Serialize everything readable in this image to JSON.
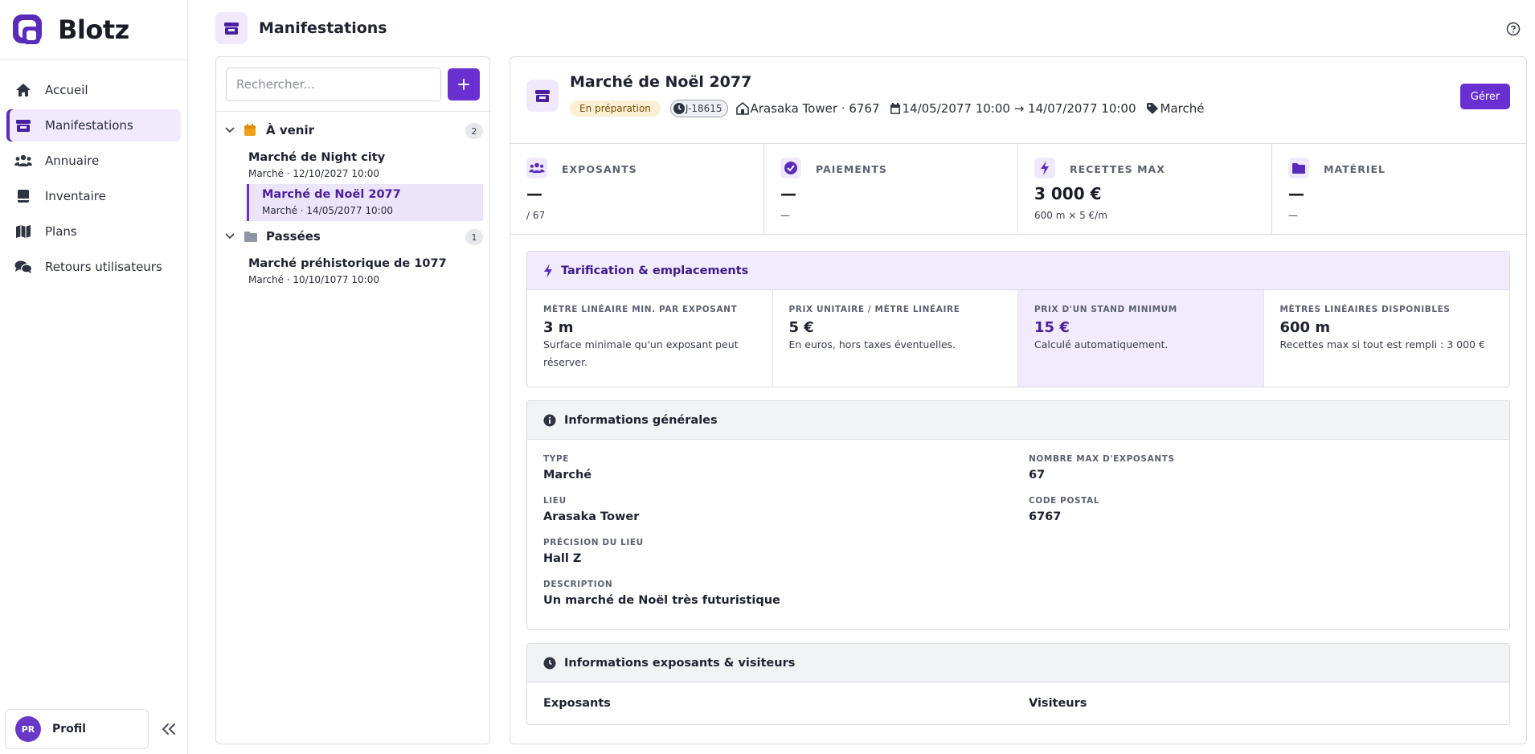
{
  "app": {
    "name": "Blotz"
  },
  "sidebar": {
    "items": [
      {
        "label": "Accueil",
        "icon": "home-icon"
      },
      {
        "label": "Manifestations",
        "icon": "store-icon",
        "active": true
      },
      {
        "label": "Annuaire",
        "icon": "users-icon"
      },
      {
        "label": "Inventaire",
        "icon": "box-icon"
      },
      {
        "label": "Plans",
        "icon": "map-icon"
      },
      {
        "label": "Retours utilisateurs",
        "icon": "comments-icon"
      }
    ],
    "profile": {
      "initials": "PR",
      "label": "Profil"
    }
  },
  "header": {
    "title": "Manifestations"
  },
  "list": {
    "search_placeholder": "Rechercher...",
    "groups": [
      {
        "title": "À venir",
        "count": "2",
        "events": [
          {
            "title": "Marché de Night city",
            "sub": "Marché · 12/10/2027 10:00"
          },
          {
            "title": "Marché de Noël 2077",
            "sub": "Marché · 14/05/2077 10:00",
            "selected": true
          }
        ]
      },
      {
        "title": "Passées",
        "count": "1",
        "events": [
          {
            "title": "Marché préhistorique de 1077",
            "sub": "Marché · 10/10/1077 10:00"
          }
        ]
      }
    ]
  },
  "detail": {
    "title": "Marché de Noël 2077",
    "status": "En préparation",
    "countdown": "J-18615",
    "location": "Arasaka Tower · 6767",
    "dates": "14/05/2077 10:00 → 14/07/2077 10:00",
    "type_tag": "Marché",
    "manage_label": "Gérer",
    "stats": [
      {
        "label": "EXPOSANTS",
        "value": "—",
        "sub": "/ 67",
        "icon": "users-icon"
      },
      {
        "label": "PAIEMENTS",
        "value": "—",
        "sub": "—",
        "icon": "check-badge-icon"
      },
      {
        "label": "RECETTES MAX",
        "value": "3 000 €",
        "sub": "600 m × 5 €/m",
        "icon": "bolt-icon"
      },
      {
        "label": "MATÉRIEL",
        "value": "—",
        "sub": "—",
        "icon": "folder-icon"
      }
    ],
    "pricing": {
      "title": "Tarification & emplacements",
      "cells": [
        {
          "label": "Mètre linéaire min. par exposant",
          "value": "3 m",
          "desc": "Surface minimale qu'un exposant peut réserver."
        },
        {
          "label": "Prix unitaire / mètre linéaire",
          "value": "5 €",
          "desc": "En euros, hors taxes éventuelles."
        },
        {
          "label": "Prix d'un stand minimum",
          "value": "15 €",
          "desc": "Calculé automatiquement."
        },
        {
          "label": "Mètres linéaires disponibles",
          "value": "600 m",
          "desc": "Recettes max si tout est rempli : 3 000 €"
        }
      ]
    },
    "general": {
      "title": "Informations générales",
      "type_label": "TYPE",
      "type_value": "Marché",
      "max_label": "NOMBRE MAX D'EXPOSANTS",
      "max_value": "67",
      "place_label": "LIEU",
      "place_value": "Arasaka Tower",
      "postal_label": "CODE POSTAL",
      "postal_value": "6767",
      "precision_label": "PRÉCISION DU LIEU",
      "precision_value": "Hall Z",
      "desc_label": "DESCRIPTION",
      "desc_value": "Un marché de Noël très futuristique"
    },
    "exhibitors": {
      "title": "Informations exposants & visiteurs",
      "col1": "Exposants",
      "col2": "Visiteurs"
    }
  },
  "colors": {
    "accent": "#6a2fd0",
    "accent_light": "#f1ebfc",
    "status_bg": "#fbf0d6"
  }
}
